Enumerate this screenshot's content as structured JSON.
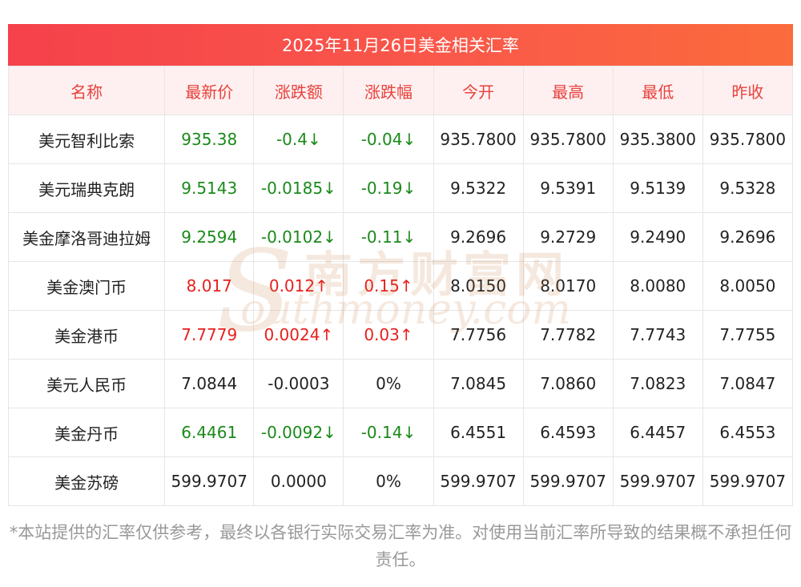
{
  "title": "2025年11月26日美金相关汇率",
  "headers": [
    "名称",
    "最新价",
    "涨跌额",
    "涨跌幅",
    "今开",
    "最高",
    "最低",
    "昨收"
  ],
  "rows": [
    {
      "name": "美元智利比索",
      "latest": "935.38",
      "change": "-0.4↓",
      "pct": "-0.04↓",
      "open": "935.7800",
      "high": "935.7800",
      "low": "935.3800",
      "prev": "935.7800",
      "trend": "down"
    },
    {
      "name": "美元瑞典克朗",
      "latest": "9.5143",
      "change": "-0.0185↓",
      "pct": "-0.19↓",
      "open": "9.5322",
      "high": "9.5391",
      "low": "9.5139",
      "prev": "9.5328",
      "trend": "down"
    },
    {
      "name": "美金摩洛哥迪拉姆",
      "latest": "9.2594",
      "change": "-0.0102↓",
      "pct": "-0.11↓",
      "open": "9.2696",
      "high": "9.2729",
      "low": "9.2490",
      "prev": "9.2696",
      "trend": "down"
    },
    {
      "name": "美金澳门币",
      "latest": "8.017",
      "change": "0.012↑",
      "pct": "0.15↑",
      "open": "8.0150",
      "high": "8.0170",
      "low": "8.0080",
      "prev": "8.0050",
      "trend": "up"
    },
    {
      "name": "美金港币",
      "latest": "7.7779",
      "change": "0.0024↑",
      "pct": "0.03↑",
      "open": "7.7756",
      "high": "7.7782",
      "low": "7.7743",
      "prev": "7.7755",
      "trend": "up"
    },
    {
      "name": "美元人民币",
      "latest": "7.0844",
      "change": "-0.0003",
      "pct": "0%",
      "open": "7.0845",
      "high": "7.0860",
      "low": "7.0823",
      "prev": "7.0847",
      "trend": "flat"
    },
    {
      "name": "美金丹币",
      "latest": "6.4461",
      "change": "-0.0092↓",
      "pct": "-0.14↓",
      "open": "6.4551",
      "high": "6.4593",
      "low": "6.4457",
      "prev": "6.4553",
      "trend": "down"
    },
    {
      "name": "美金苏磅",
      "latest": "599.9707",
      "change": "0.0000",
      "pct": "0%",
      "open": "599.9707",
      "high": "599.9707",
      "low": "599.9707",
      "prev": "599.9707",
      "trend": "flat"
    }
  ],
  "colors": {
    "up": "#e8201e",
    "down": "#1a8a1a",
    "header_text": "#e8413c",
    "banner": "#f5414b"
  },
  "watermark": {
    "cn": "南方财富网",
    "en": "outhmoney.com",
    "s": "S"
  },
  "note": "*本站提供的汇率仅供参考，最终以各银行实际交易汇率为准。对使用当前汇率所导致的结果概不承担任何责任。"
}
